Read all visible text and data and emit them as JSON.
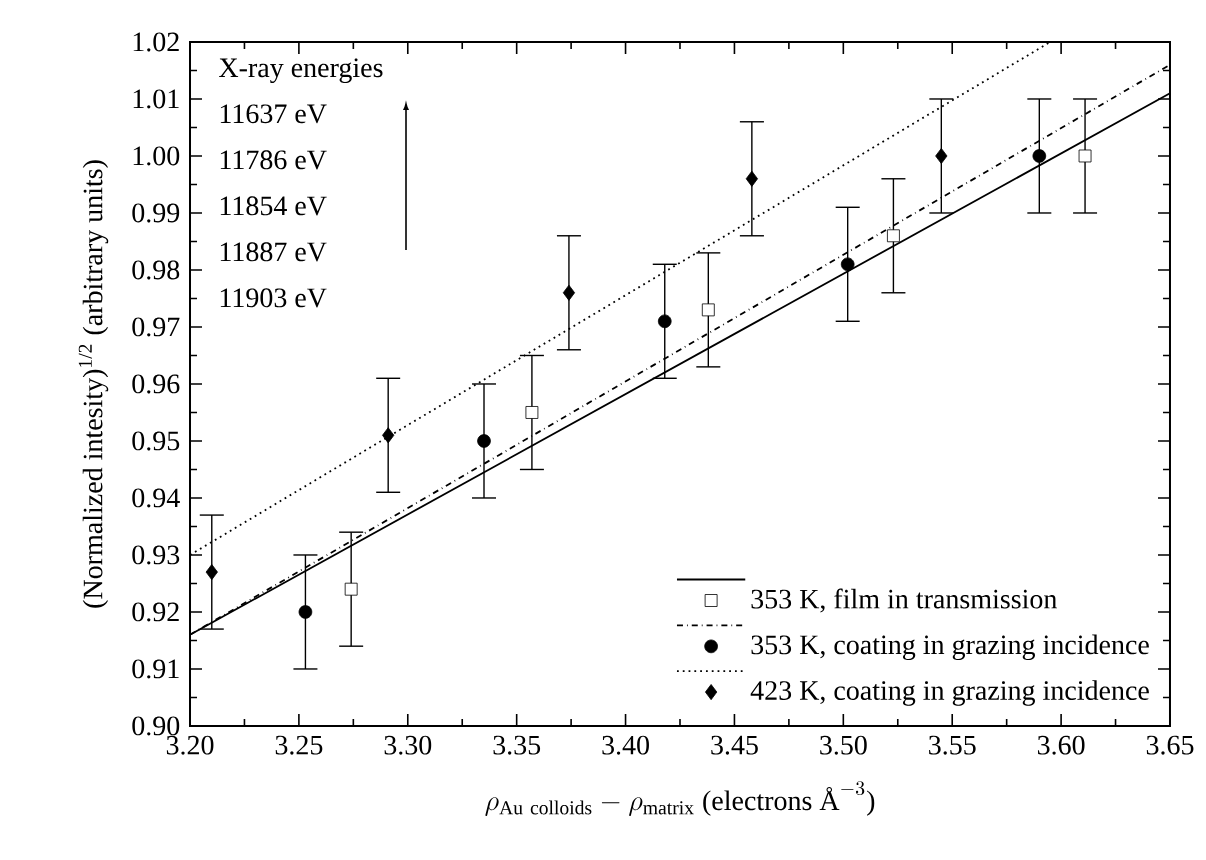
{
  "chart_data": {
    "type": "scatter",
    "xlabel": "\\rho_{\\mathrm{Au\\ colloids}}-\\rho_{\\mathrm{matrix}}\\text{ (electrons Å}^{-3}\\text{)}",
    "ylabel": "(Normalized intesity)$^{1/2}$ (arbitrary units)",
    "annotations": [
      "X-ray energies",
      "11637 eV",
      "11786 eV",
      "11854 eV",
      "11887 eV",
      "11903 eV"
    ],
    "xlim": [
      3.2,
      3.65
    ],
    "xticks": [
      {
        "value": 3.2,
        "label": "3.20"
      },
      {
        "value": 3.25,
        "label": "3.25"
      },
      {
        "value": 3.3,
        "label": "3.30"
      },
      {
        "value": 3.35,
        "label": "3.35"
      },
      {
        "value": 3.4,
        "label": "3.40"
      },
      {
        "value": 3.45,
        "label": "3.45"
      },
      {
        "value": 3.5,
        "label": "3.50"
      },
      {
        "value": 3.55,
        "label": "3.55"
      },
      {
        "value": 3.6,
        "label": "3.60"
      },
      {
        "value": 3.65,
        "label": "3.65"
      }
    ],
    "ylim": [
      0.9,
      1.02
    ],
    "yticks": [
      {
        "value": 0.9,
        "label": "0.90"
      },
      {
        "value": 0.91,
        "label": "0.91"
      },
      {
        "value": 0.92,
        "label": "0.92"
      },
      {
        "value": 0.93,
        "label": "0.93"
      },
      {
        "value": 0.94,
        "label": "0.94"
      },
      {
        "value": 0.95,
        "label": "0.95"
      },
      {
        "value": 0.96,
        "label": "0.96"
      },
      {
        "value": 0.97,
        "label": "0.97"
      },
      {
        "value": 0.98,
        "label": "0.98"
      },
      {
        "value": 0.99,
        "label": "0.99"
      },
      {
        "value": 1.0,
        "label": "1.00"
      },
      {
        "value": 1.01,
        "label": "1.01"
      },
      {
        "value": 1.02,
        "label": "1.02"
      }
    ],
    "legend": "bottom right",
    "series": [
      {
        "name": "353 K, film in transmission",
        "marker": "square",
        "color": "#000000",
        "x": [
          3.274,
          3.357,
          3.438,
          3.523,
          3.611
        ],
        "values": [
          0.924,
          0.955,
          0.973,
          0.986,
          1.0
        ],
        "errors": [
          0.01,
          0.01,
          0.01,
          0.01,
          0.01
        ]
      },
      {
        "name": "353 K, coating in grazing incidence",
        "marker": "circle",
        "color": "#000000",
        "x": [
          3.253,
          3.335,
          3.418,
          3.502,
          3.59
        ],
        "values": [
          0.92,
          0.95,
          0.971,
          0.981,
          1.0
        ],
        "errors": [
          0.01,
          0.01,
          0.01,
          0.01,
          0.01
        ]
      },
      {
        "name": "423 K, coating in grazing incidence",
        "marker": "diamond",
        "color": "#000000",
        "x": [
          3.21,
          3.291,
          3.374,
          3.458,
          3.545
        ],
        "values": [
          0.927,
          0.951,
          0.976,
          0.996,
          1.0
        ],
        "errors": [
          0.01,
          0.01,
          0.01,
          0.01,
          0.01
        ]
      },
      {
        "type": "line",
        "line_style": "solid",
        "color": "#000000",
        "x": [
          3.2,
          3.65
        ],
        "values": [
          0.916,
          1.011
        ]
      },
      {
        "type": "line",
        "line_style": "dashdot",
        "color": "#000000",
        "x": [
          3.2,
          3.65
        ],
        "values": [
          0.916,
          1.016
        ]
      },
      {
        "type": "line",
        "line_style": "dotted",
        "color": "#000000",
        "x": [
          3.2,
          3.595
        ],
        "values": [
          0.93,
          1.02
        ]
      }
    ]
  }
}
